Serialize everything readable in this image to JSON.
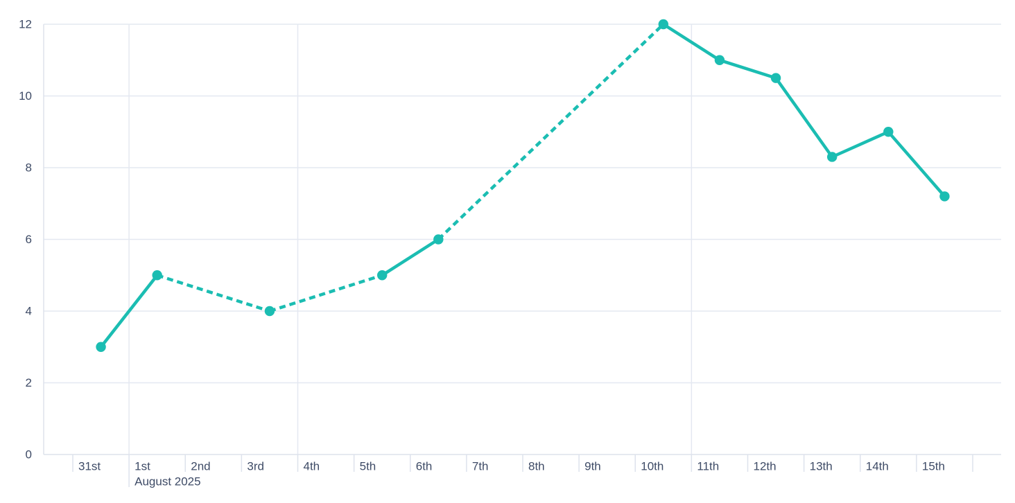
{
  "chart_data": {
    "type": "line",
    "title": "",
    "xlabel": "",
    "ylabel": "",
    "legend": "none",
    "grid": "on",
    "x_axis": {
      "tick_labels": [
        "31st",
        "1st",
        "2nd",
        "3rd",
        "4th",
        "5th",
        "6th",
        "7th",
        "8th",
        "9th",
        "10th",
        "11th",
        "12th",
        "13th",
        "14th",
        "15th"
      ],
      "month_label": "August 2025",
      "month_label_under": "1st"
    },
    "y_axis": {
      "tick_labels": [
        "0",
        "2",
        "4",
        "6",
        "8",
        "10",
        "12"
      ],
      "ticks": [
        0,
        2,
        4,
        6,
        8,
        10,
        12
      ],
      "min": 0,
      "max": 12
    },
    "gridlines": {
      "horizontal_at": [
        2,
        4,
        6,
        8,
        10,
        12
      ],
      "vertical_at_labels": [
        "1st",
        "4th",
        "11th"
      ]
    },
    "series": [
      {
        "name": "daily-values",
        "color": "#1bbdb2",
        "points": [
          {
            "x": "31st",
            "value": 3
          },
          {
            "x": "1st",
            "value": 5
          },
          {
            "x": "3rd",
            "value": 4
          },
          {
            "x": "5th",
            "value": 5
          },
          {
            "x": "6th",
            "value": 6
          },
          {
            "x": "10th",
            "value": 12
          },
          {
            "x": "11th",
            "value": 11
          },
          {
            "x": "12th",
            "value": 10.5
          },
          {
            "x": "13th",
            "value": 8.3
          },
          {
            "x": "14th",
            "value": 9
          },
          {
            "x": "15th",
            "value": 7.2
          }
        ],
        "segments": [
          {
            "from": "31st",
            "to": "1st",
            "style": "solid"
          },
          {
            "from": "1st",
            "to": "3rd",
            "style": "dashed"
          },
          {
            "from": "3rd",
            "to": "5th",
            "style": "dashed"
          },
          {
            "from": "5th",
            "to": "6th",
            "style": "solid"
          },
          {
            "from": "6th",
            "to": "10th",
            "style": "dashed"
          },
          {
            "from": "10th",
            "to": "15th",
            "style": "solid"
          }
        ]
      }
    ],
    "colors": {
      "line": "#1bbdb2",
      "grid": "#e4e8f1",
      "axis": "#dde2ec",
      "text": "#3e4b66",
      "background": "#ffffff"
    }
  },
  "accessibility": {
    "chart_label": "Line chart of daily values from July 31st to August 15th, 2025"
  }
}
